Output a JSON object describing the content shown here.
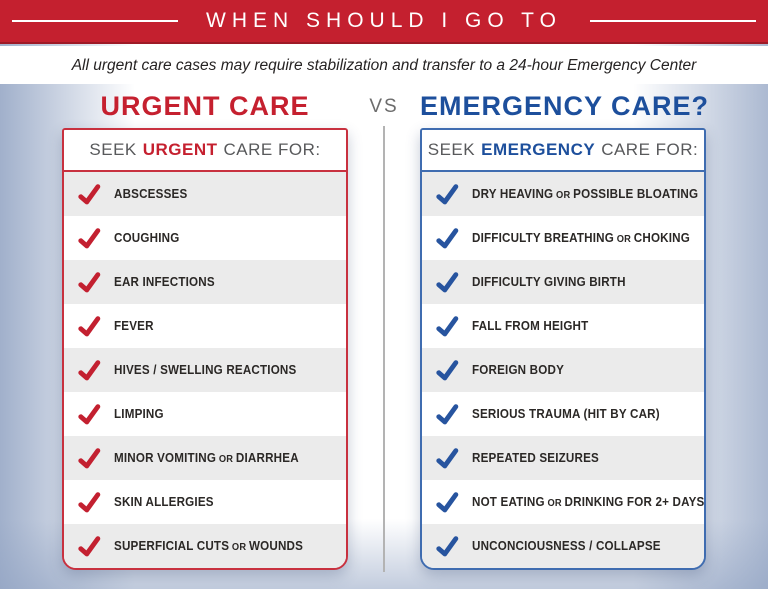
{
  "banner": {
    "title": "WHEN SHOULD I GO TO"
  },
  "disclaimer": "All urgent care cases may require stabilization and transfer to a 24-hour Emergency Center",
  "vs_label": "VS",
  "colors": {
    "red": "#c4202f",
    "blue": "#1d4f9c",
    "row_alt": "#ebebeb",
    "background_edge": "#90a2c2"
  },
  "urgent": {
    "title": "URGENT CARE",
    "header": {
      "prefix": "SEEK",
      "keyword": "URGENT",
      "suffix": "CARE FOR:"
    },
    "items": [
      [
        {
          "t": "ABSCESSES",
          "sm": false
        }
      ],
      [
        {
          "t": "COUGHING",
          "sm": false
        }
      ],
      [
        {
          "t": "EAR INFECTIONS",
          "sm": false
        }
      ],
      [
        {
          "t": "FEVER",
          "sm": false
        }
      ],
      [
        {
          "t": "HIVES / SWELLING REACTIONS",
          "sm": false
        }
      ],
      [
        {
          "t": "LIMPING",
          "sm": false
        }
      ],
      [
        {
          "t": "MINOR VOMITING",
          "sm": false
        },
        {
          "t": " OR ",
          "sm": true
        },
        {
          "t": "DIARRHEA",
          "sm": false
        }
      ],
      [
        {
          "t": "SKIN ALLERGIES",
          "sm": false
        }
      ],
      [
        {
          "t": "SUPERFICIAL CUTS",
          "sm": false
        },
        {
          "t": " OR ",
          "sm": true
        },
        {
          "t": "WOUNDS",
          "sm": false
        }
      ]
    ]
  },
  "emergency": {
    "title": "EMERGENCY CARE?",
    "header": {
      "prefix": "SEEK",
      "keyword": "EMERGENCY",
      "suffix": "CARE FOR:"
    },
    "items": [
      [
        {
          "t": "DRY HEAVING",
          "sm": false
        },
        {
          "t": " OR ",
          "sm": true
        },
        {
          "t": "POSSIBLE BLOATING",
          "sm": false
        }
      ],
      [
        {
          "t": "DIFFICULTY BREATHING",
          "sm": false
        },
        {
          "t": " OR ",
          "sm": true
        },
        {
          "t": "CHOKING",
          "sm": false
        }
      ],
      [
        {
          "t": "DIFFICULTY GIVING BIRTH",
          "sm": false
        }
      ],
      [
        {
          "t": "FALL FROM HEIGHT",
          "sm": false
        }
      ],
      [
        {
          "t": "FOREIGN BODY",
          "sm": false
        }
      ],
      [
        {
          "t": "SERIOUS TRAUMA (HIT BY CAR)",
          "sm": false
        }
      ],
      [
        {
          "t": "REPEATED SEIZURES",
          "sm": false
        }
      ],
      [
        {
          "t": "NOT EATING",
          "sm": false
        },
        {
          "t": " OR ",
          "sm": true
        },
        {
          "t": "DRINKING FOR 2+ DAYS",
          "sm": false
        }
      ],
      [
        {
          "t": "UNCONCIOUSNESS / COLLAPSE",
          "sm": false
        }
      ]
    ]
  }
}
